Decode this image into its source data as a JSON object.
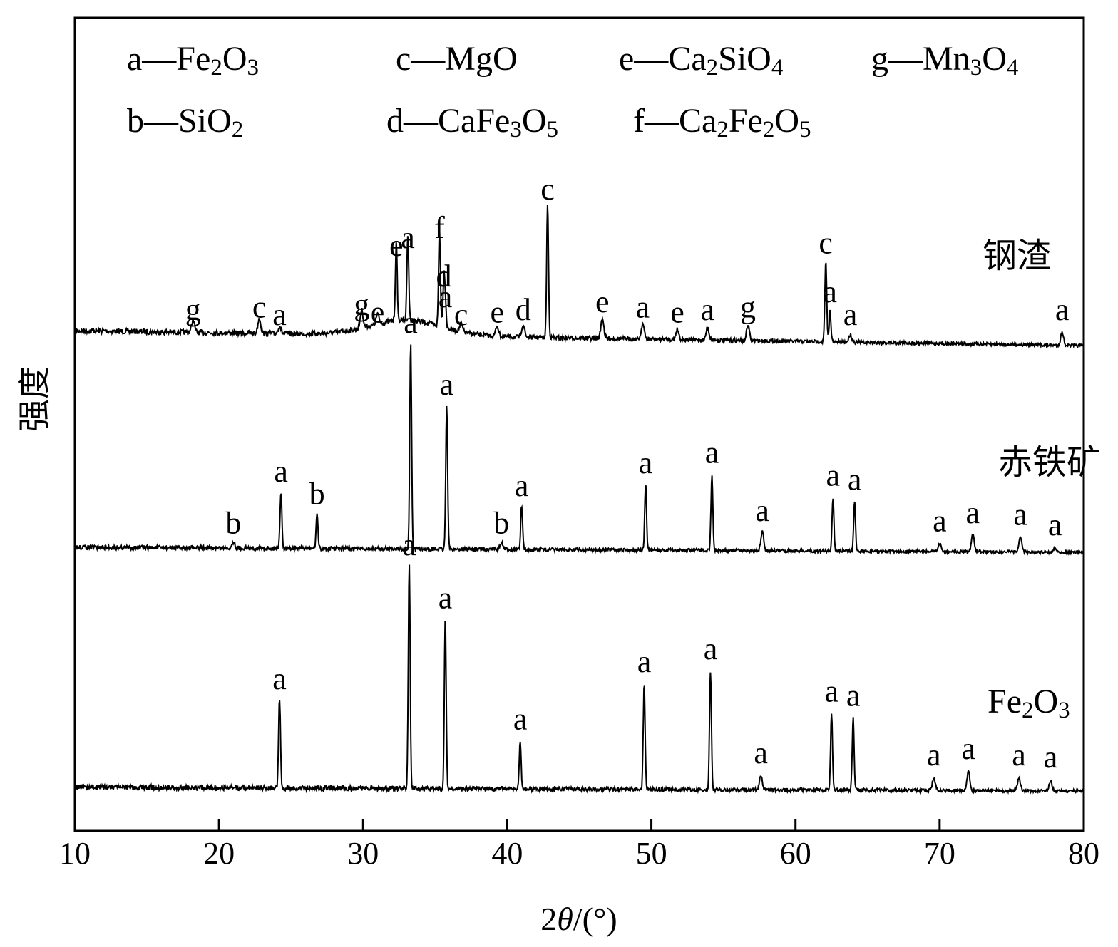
{
  "chart_data": {
    "type": "line",
    "xlabel": "2θ/(°)",
    "ylabel": "强度",
    "xlim": [
      10,
      80
    ],
    "xticks": [
      10,
      20,
      30,
      40,
      50,
      60,
      70,
      80
    ],
    "y_ticks_shown": false,
    "grid": false,
    "legend": {
      "placement": "top",
      "entries": [
        {
          "key": "a",
          "label": "Fe₂O₃"
        },
        {
          "key": "b",
          "label": "SiO₂"
        },
        {
          "key": "c",
          "label": "MgO"
        },
        {
          "key": "d",
          "label": "CaFe₃O₅"
        },
        {
          "key": "e",
          "label": "Ca₂SiO₄"
        },
        {
          "key": "f",
          "label": "Ca₂Fe₂O₅"
        },
        {
          "key": "g",
          "label": "Mn₃O₄"
        }
      ]
    },
    "series": [
      {
        "name": "钢渣",
        "baseline": 0.48,
        "peaks": [
          {
            "x": 18.2,
            "h": 0.05,
            "label": "g"
          },
          {
            "x": 22.8,
            "h": 0.06,
            "label": "c"
          },
          {
            "x": 24.2,
            "h": 0.03,
            "label": "a"
          },
          {
            "x": 29.9,
            "h": 0.07,
            "label": "g"
          },
          {
            "x": 31.0,
            "h": 0.04,
            "label": "e"
          },
          {
            "x": 32.3,
            "h": 0.3,
            "label": "e"
          },
          {
            "x": 33.1,
            "h": 0.33,
            "label": "a"
          },
          {
            "x": 35.3,
            "h": 0.37,
            "label": "f"
          },
          {
            "x": 35.6,
            "h": 0.18,
            "label": "d"
          },
          {
            "x": 35.7,
            "h": 0.1,
            "label": "a"
          },
          {
            "x": 36.8,
            "h": 0.03,
            "label": "c"
          },
          {
            "x": 39.3,
            "h": 0.04,
            "label": "e"
          },
          {
            "x": 41.1,
            "h": 0.05,
            "label": "d"
          },
          {
            "x": 42.8,
            "h": 0.52,
            "label": "c"
          },
          {
            "x": 46.6,
            "h": 0.08,
            "label": "e"
          },
          {
            "x": 49.4,
            "h": 0.06,
            "label": "a"
          },
          {
            "x": 51.8,
            "h": 0.04,
            "label": "e"
          },
          {
            "x": 53.9,
            "h": 0.05,
            "label": "a"
          },
          {
            "x": 56.7,
            "h": 0.06,
            "label": "g"
          },
          {
            "x": 62.1,
            "h": 0.31,
            "label": "c"
          },
          {
            "x": 62.4,
            "h": 0.12,
            "label": "a"
          },
          {
            "x": 63.8,
            "h": 0.03,
            "label": "a"
          },
          {
            "x": 78.5,
            "h": 0.05,
            "label": "a"
          }
        ]
      },
      {
        "name": "赤铁矿",
        "baseline": 0.2,
        "peaks": [
          {
            "x": 21.0,
            "h": 0.03,
            "label": "b"
          },
          {
            "x": 24.3,
            "h": 0.28,
            "label": "a"
          },
          {
            "x": 26.8,
            "h": 0.17,
            "label": "b"
          },
          {
            "x": 33.3,
            "h": 1.0,
            "label": "a"
          },
          {
            "x": 35.8,
            "h": 0.7,
            "label": "a"
          },
          {
            "x": 39.6,
            "h": 0.03,
            "label": "b"
          },
          {
            "x": 41.0,
            "h": 0.21,
            "label": "a"
          },
          {
            "x": 49.6,
            "h": 0.32,
            "label": "a"
          },
          {
            "x": 54.2,
            "h": 0.37,
            "label": "a"
          },
          {
            "x": 57.7,
            "h": 0.09,
            "label": "a"
          },
          {
            "x": 62.6,
            "h": 0.26,
            "label": "a"
          },
          {
            "x": 64.1,
            "h": 0.24,
            "label": "a"
          },
          {
            "x": 70.0,
            "h": 0.04,
            "label": "a"
          },
          {
            "x": 72.3,
            "h": 0.08,
            "label": "a"
          },
          {
            "x": 75.6,
            "h": 0.07,
            "label": "a"
          },
          {
            "x": 78.0,
            "h": 0.02,
            "label": "a"
          }
        ]
      },
      {
        "name": "Fe₂O₃",
        "baseline": 0.0,
        "peaks": [
          {
            "x": 24.2,
            "h": 0.42,
            "label": "a"
          },
          {
            "x": 33.2,
            "h": 1.05,
            "label": "a"
          },
          {
            "x": 35.7,
            "h": 0.8,
            "label": "a"
          },
          {
            "x": 40.9,
            "h": 0.23,
            "label": "a"
          },
          {
            "x": 49.5,
            "h": 0.5,
            "label": "a"
          },
          {
            "x": 54.1,
            "h": 0.56,
            "label": "a"
          },
          {
            "x": 57.6,
            "h": 0.07,
            "label": "a"
          },
          {
            "x": 62.5,
            "h": 0.36,
            "label": "a"
          },
          {
            "x": 64.0,
            "h": 0.34,
            "label": "a"
          },
          {
            "x": 69.6,
            "h": 0.06,
            "label": "a"
          },
          {
            "x": 72.0,
            "h": 0.09,
            "label": "a"
          },
          {
            "x": 75.5,
            "h": 0.06,
            "label": "a"
          },
          {
            "x": 77.7,
            "h": 0.05,
            "label": "a"
          }
        ]
      }
    ]
  }
}
